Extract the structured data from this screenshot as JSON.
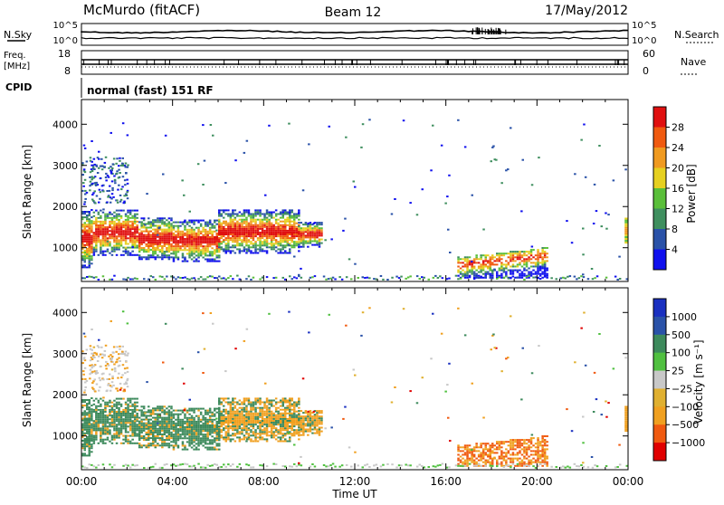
{
  "header": {
    "station": "McMurdo (fitACF)",
    "beam": "Beam 12",
    "date": "17/May/2012"
  },
  "noise_panel": {
    "left_label": "N.Sky",
    "right_label": "N.Search",
    "left_ticks": [
      "10^5",
      "10^0"
    ],
    "right_ticks": [
      "10^5",
      "10^0"
    ]
  },
  "freq_panel": {
    "left_label_1": "Freq.",
    "left_label_2": "[MHz]",
    "right_label": "Nave",
    "left_ticks": [
      "18",
      "8"
    ],
    "right_ticks": [
      "60",
      "0"
    ]
  },
  "cpid_panel": {
    "label": "CPID",
    "text": "normal (fast) 151 RF"
  },
  "colors": {
    "power_scale": [
      "#1010ee",
      "#2a52a8",
      "#3f8f5f",
      "#5abf3a",
      "#e6d020",
      "#f09a20",
      "#f05a10",
      "#e01010"
    ],
    "velocity_scale": [
      "#e00000",
      "#f05a10",
      "#f0a020",
      "#e0b030",
      "#c8c8c8",
      "#50c040",
      "#3d8a5c",
      "#2a52a8",
      "#1a30c0"
    ]
  },
  "chart_data": [
    {
      "type": "heatmap",
      "name": "power",
      "ylabel": "Slant Range [km]",
      "yticks": [
        "1000",
        "2000",
        "3000",
        "4000"
      ],
      "xticks": [
        "00:00",
        "04:00",
        "08:00",
        "12:00",
        "16:00",
        "20:00",
        "00:00"
      ],
      "xlim_hours": [
        0,
        24
      ],
      "ylim_km": [
        180,
        4600
      ],
      "colorbar_label": "Power [dB]",
      "colorbar_ticks": [
        "4",
        "8",
        "12",
        "16",
        "20",
        "24",
        "28"
      ],
      "colorbar_range": [
        0,
        32
      ]
    },
    {
      "type": "heatmap",
      "name": "velocity",
      "ylabel": "Slant Range [km]",
      "yticks": [
        "1000",
        "2000",
        "3000",
        "4000"
      ],
      "xticks": [
        "00:00",
        "04:00",
        "08:00",
        "12:00",
        "16:00",
        "20:00",
        "00:00"
      ],
      "xlabel": "Time UT",
      "xlim_hours": [
        0,
        24
      ],
      "ylim_km": [
        180,
        4600
      ],
      "colorbar_label": "Velocity [m s⁻¹]",
      "colorbar_ticks": [
        "1000",
        "500",
        "100",
        "25",
        "−25",
        "−100",
        "−500",
        "−1000"
      ]
    }
  ]
}
